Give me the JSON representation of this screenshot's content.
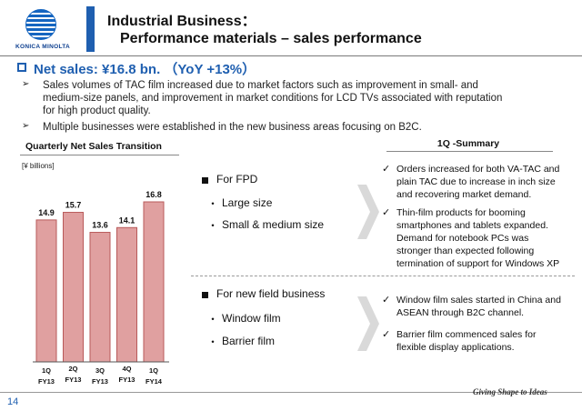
{
  "header": {
    "logo_text": "KONICA MINOLTA",
    "title_line1": "Industrial Business：",
    "title_line2": "Performance materials – sales performance"
  },
  "net_sales": {
    "heading": "Net sales: ¥16.8 bn. （YoY +13%）",
    "bullets": [
      {
        "line1": "Sales volumes of TAC film increased due to market factors such as improvement in small- and",
        "line2": "medium-size panels, and improvement in market conditions for LCD TVs associated with reputation",
        "line3": "for high product quality."
      },
      {
        "line1": "Multiple businesses were established in the new business areas focusing on B2C."
      }
    ]
  },
  "chart_title": "Quarterly Net Sales Transition",
  "chart_data": {
    "type": "bar",
    "unit_label": "[¥ billions]",
    "categories": [
      {
        "q": "1Q",
        "fy": "FY13"
      },
      {
        "q": "2Q",
        "fy": "FY13"
      },
      {
        "q": "3Q",
        "fy": "FY13"
      },
      {
        "q": "4Q",
        "fy": "FY13"
      },
      {
        "q": "1Q",
        "fy": "FY14"
      }
    ],
    "values": [
      14.9,
      15.7,
      13.6,
      14.1,
      16.8
    ],
    "value_labels": [
      "14.9",
      "15.7",
      "13.6",
      "14.1",
      "16.8"
    ],
    "bar_color": "#e0a0a0",
    "bar_border_color": "#b85a5a"
  },
  "summary": {
    "title": "1Q -Summary",
    "fpd": {
      "heading": "For FPD",
      "items": [
        "Large size",
        "Small & medium size"
      ],
      "checks": [
        {
          "lines": [
            "Orders increased for both VA-TAC and",
            "plain TAC due to increase in inch size",
            "and recovering market demand."
          ]
        },
        {
          "lines": [
            "Thin-film products for booming",
            "smartphones and tablets expanded.",
            "Demand for notebook PCs was",
            "stronger than expected following",
            "termination of support for Windows XP"
          ]
        }
      ]
    },
    "new_field": {
      "heading": "For new field business",
      "items": [
        "Window film",
        "Barrier film"
      ],
      "checks": [
        {
          "lines": [
            "Window film sales started in China and",
            "ASEAN through B2C channel."
          ]
        },
        {
          "lines": [
            "Barrier film commenced sales for",
            "flexible display applications."
          ]
        }
      ]
    }
  },
  "footer": {
    "page_number": "14",
    "tagline": "Giving Shape to Ideas"
  },
  "colors": {
    "brand_blue": "#1f5fb0"
  }
}
